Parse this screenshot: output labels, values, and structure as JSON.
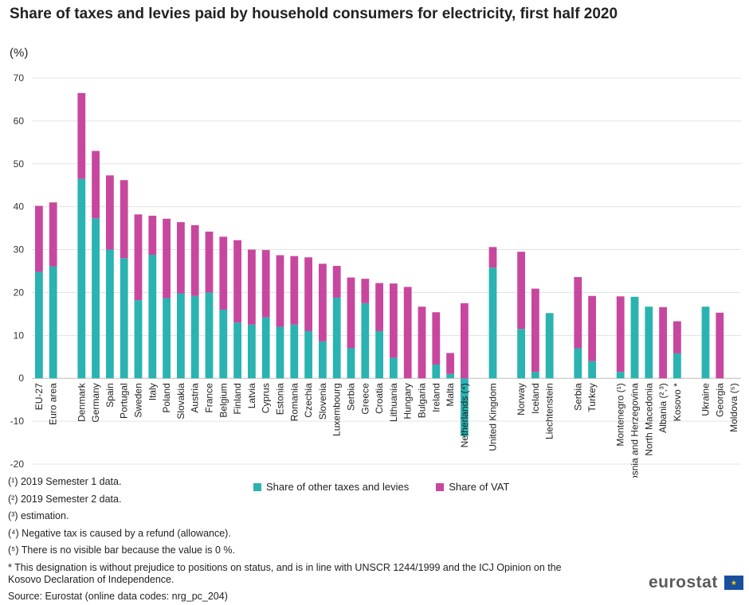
{
  "colors": {
    "other": "#2ab3b0",
    "vat": "#c8479e",
    "grid": "#e3e3e3",
    "axis": "#bdbdbd"
  },
  "chart_data": {
    "type": "bar",
    "stacked": true,
    "title": "Share of taxes and levies paid by household consumers for electricity, first half 2020",
    "unit": "(%)",
    "ylim": [
      -20,
      70
    ],
    "yticks": [
      -20,
      -10,
      0,
      10,
      20,
      30,
      40,
      50,
      60,
      70
    ],
    "grid": true,
    "legend_position": "bottom",
    "categories": [
      "EU-27",
      "Euro area",
      "",
      "Denmark",
      "Germany",
      "Spain",
      "Portugal",
      "Sweden",
      "Italy",
      "Poland",
      "Slovakia",
      "Austria",
      "France",
      "Belgium",
      "Finland",
      "Latvia",
      "Cyprus",
      "Estonia",
      "Romania",
      "Czechia",
      "Slovenia",
      "Luxembourg",
      "Serbia",
      "Greece",
      "Croatia",
      "Lithuania",
      "Hungary",
      "Bulgaria",
      "Ireland",
      "Malta",
      "Netherlands (⁴)",
      "",
      "United Kingdom",
      "",
      "Norway",
      "Iceland",
      "Liechtenstein",
      "",
      "Serbia",
      "Turkey",
      "",
      "Montenegro (¹)",
      "Bosnia and Herzegovina",
      "North Macedonia",
      "Albania (²,³)",
      "Kosovo *",
      "",
      "Ukraine",
      "Georgia",
      "Moldova (⁵)"
    ],
    "series": [
      {
        "name": "Share of other taxes and levies",
        "values": [
          24.8,
          26.1,
          null,
          46.5,
          37.3,
          30.0,
          28.0,
          18.2,
          28.8,
          18.7,
          19.8,
          19.2,
          20.0,
          16.0,
          13.0,
          12.5,
          14.2,
          12.0,
          12.5,
          11.0,
          8.6,
          18.8,
          7.0,
          17.5,
          11.0,
          4.8,
          0,
          0,
          3.2,
          1.0,
          -13.5,
          null,
          25.8,
          null,
          11.5,
          1.5,
          15.2,
          null,
          7.0,
          4.0,
          null,
          1.5,
          19.0,
          16.7,
          0,
          5.8,
          null,
          16.7,
          0,
          0
        ]
      },
      {
        "name": "Share of VAT",
        "values": [
          15.4,
          14.9,
          null,
          20.0,
          15.7,
          17.3,
          18.2,
          20.0,
          9.1,
          18.5,
          16.6,
          16.5,
          14.2,
          17.0,
          19.2,
          17.5,
          15.7,
          16.7,
          16.0,
          17.2,
          18.1,
          7.4,
          16.5,
          5.7,
          11.2,
          17.3,
          21.3,
          16.7,
          12.2,
          4.9,
          17.5,
          null,
          4.8,
          null,
          18.0,
          19.4,
          0,
          null,
          16.6,
          15.2,
          null,
          17.6,
          0,
          0,
          16.6,
          7.5,
          null,
          0,
          15.3,
          0
        ]
      }
    ],
    "notes": [
      "(¹) 2019 Semester 1 data.",
      "(²) 2019 Semester 2 data.",
      "(³) estimation.",
      "(⁴) Negative tax is caused by a refund (allowance).",
      "(⁵) There is no visible bar because the value is 0 %.",
      "* This designation is without prejudice to positions on status, and is in line with UNSCR 1244/1999 and the ICJ Opinion on the Kosovo Declaration of Independence."
    ],
    "source": "Source: Eurostat (online data codes: nrg_pc_204)"
  },
  "logo_text": "eurostat"
}
